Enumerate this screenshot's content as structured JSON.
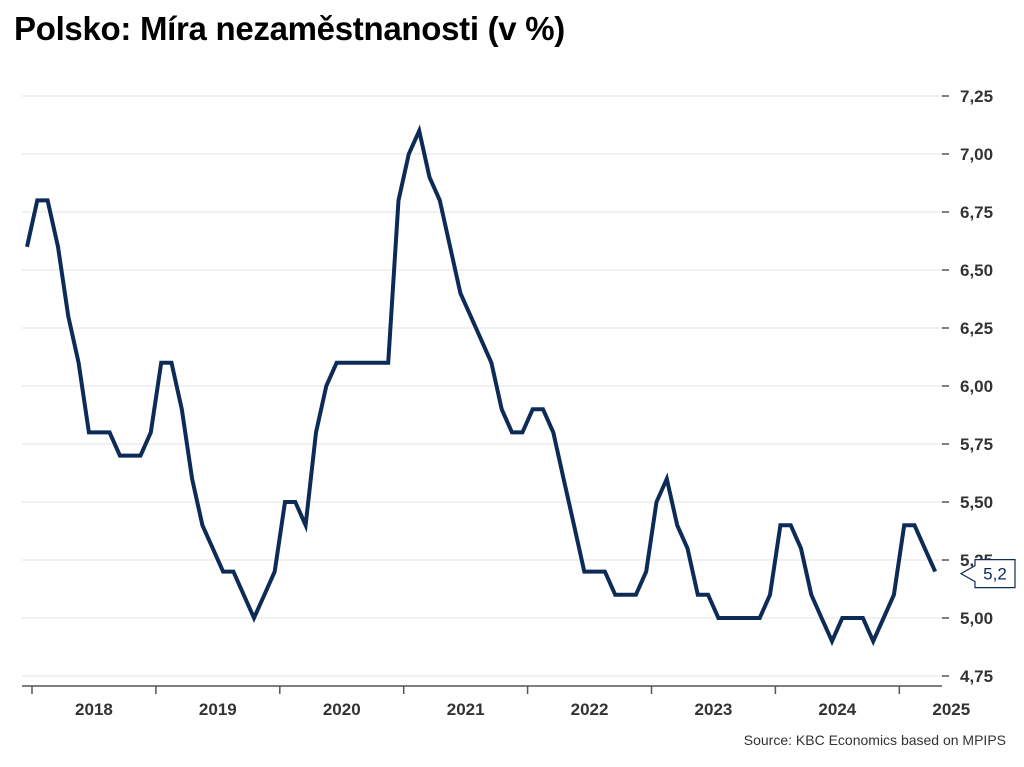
{
  "title": "Polsko: Míra nezaměstnanosti (v %)",
  "source": "Source: KBC Economics based on MPIPS",
  "chart_data": {
    "type": "line",
    "title": "Polsko: Míra nezaměstnanosti (v %)",
    "xlabel": "",
    "ylabel": "",
    "ylim": [
      4.75,
      7.25
    ],
    "yticks": [
      "4,75",
      "5,00",
      "5,25",
      "5,50",
      "5,75",
      "6,00",
      "6,25",
      "6,50",
      "6,75",
      "7,00",
      "7,25"
    ],
    "xticks": [
      "2018",
      "2019",
      "2020",
      "2021",
      "2022",
      "2023",
      "2024",
      "2025"
    ],
    "grid": true,
    "legend": "none",
    "color": "#0d2b57",
    "last_value_label": "5,2",
    "series": [
      {
        "values": [
          6.6,
          6.8,
          6.8,
          6.6,
          6.3,
          6.1,
          5.8,
          5.8,
          5.8,
          5.7,
          5.7,
          5.7,
          5.8,
          6.1,
          6.1,
          5.9,
          5.6,
          5.4,
          5.3,
          5.2,
          5.2,
          5.1,
          5.0,
          5.1,
          5.2,
          5.5,
          5.5,
          5.4,
          5.8,
          6.0,
          6.1,
          6.1,
          6.1,
          6.1,
          6.1,
          6.1,
          6.8,
          7.0,
          7.1,
          6.9,
          6.8,
          6.6,
          6.4,
          6.3,
          6.2,
          6.1,
          5.9,
          5.8,
          5.8,
          5.9,
          5.9,
          5.8,
          5.6,
          5.4,
          5.2,
          5.2,
          5.2,
          5.1,
          5.1,
          5.1,
          5.2,
          5.5,
          5.6,
          5.4,
          5.3,
          5.1,
          5.1,
          5.0,
          5.0,
          5.0,
          5.0,
          5.0,
          5.1,
          5.4,
          5.4,
          5.3,
          5.1,
          5.0,
          4.9,
          5.0,
          5.0,
          5.0,
          4.9,
          5.0,
          5.1,
          5.4,
          5.4,
          5.3,
          5.2
        ]
      }
    ]
  }
}
